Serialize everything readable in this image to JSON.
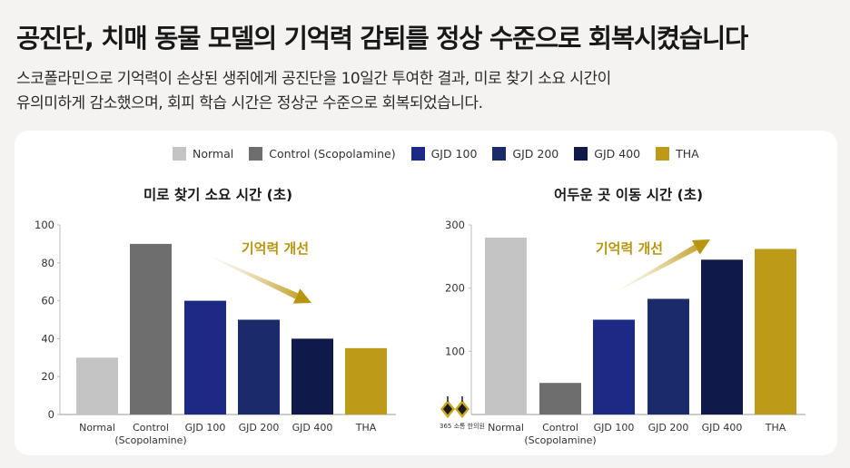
{
  "headline": "공진단, 치매 동물 모델의 기억력 감퇴를 정상 수준으로 회복시켰습니다",
  "subtitle_lines": [
    "스코폴라민으로 기억력이 손상된 생쥐에게 공진단을 10일간 투여한 결과, 미로 찾기 소요 시간이",
    "유의미하게 감소했으며, 회피 학습 시간은 정상군 수준으로 회복되었습니다."
  ],
  "legend": [
    {
      "label": "Normal",
      "color": "#c4c4c4"
    },
    {
      "label": "Control (Scopolamine)",
      "color": "#6e6e6e"
    },
    {
      "label": "GJD 100",
      "color": "#1d2a85"
    },
    {
      "label": "GJD 200",
      "color": "#1b2a6b"
    },
    {
      "label": "GJD 400",
      "color": "#0f1a4a"
    },
    {
      "label": "THA",
      "color": "#bd9a18"
    }
  ],
  "logo_text": "365 소통 한의원",
  "chart_data": [
    {
      "type": "bar",
      "title": "미로 찾기 소요 시간 (초)",
      "categories": [
        "Normal",
        "Control\n(Scopolamine)",
        "GJD 100",
        "GJD 200",
        "GJD 400",
        "THA"
      ],
      "values": [
        30,
        90,
        60,
        50,
        40,
        35
      ],
      "colors": [
        "#c4c4c4",
        "#6e6e6e",
        "#1d2a85",
        "#1b2a6b",
        "#0f1a4a",
        "#bd9a18"
      ],
      "ylim": [
        0,
        100
      ],
      "yticks": [
        0,
        20,
        40,
        60,
        80,
        100
      ],
      "grid": false,
      "annotation": "기억력 개선",
      "arrow_direction": "down"
    },
    {
      "type": "bar",
      "title": "어두운 곳 이동 시간 (초)",
      "categories": [
        "Normal",
        "Control\n(Scopolamine)",
        "GJD 100",
        "GJD 200",
        "GJD 400",
        "THA"
      ],
      "values": [
        280,
        50,
        150,
        183,
        245,
        262
      ],
      "colors": [
        "#c4c4c4",
        "#6e6e6e",
        "#1d2a85",
        "#1b2a6b",
        "#0f1a4a",
        "#bd9a18"
      ],
      "ylim": [
        0,
        300
      ],
      "yticks": [
        100,
        200,
        300
      ],
      "grid": false,
      "annotation": "기억력 개선",
      "arrow_direction": "up"
    }
  ]
}
